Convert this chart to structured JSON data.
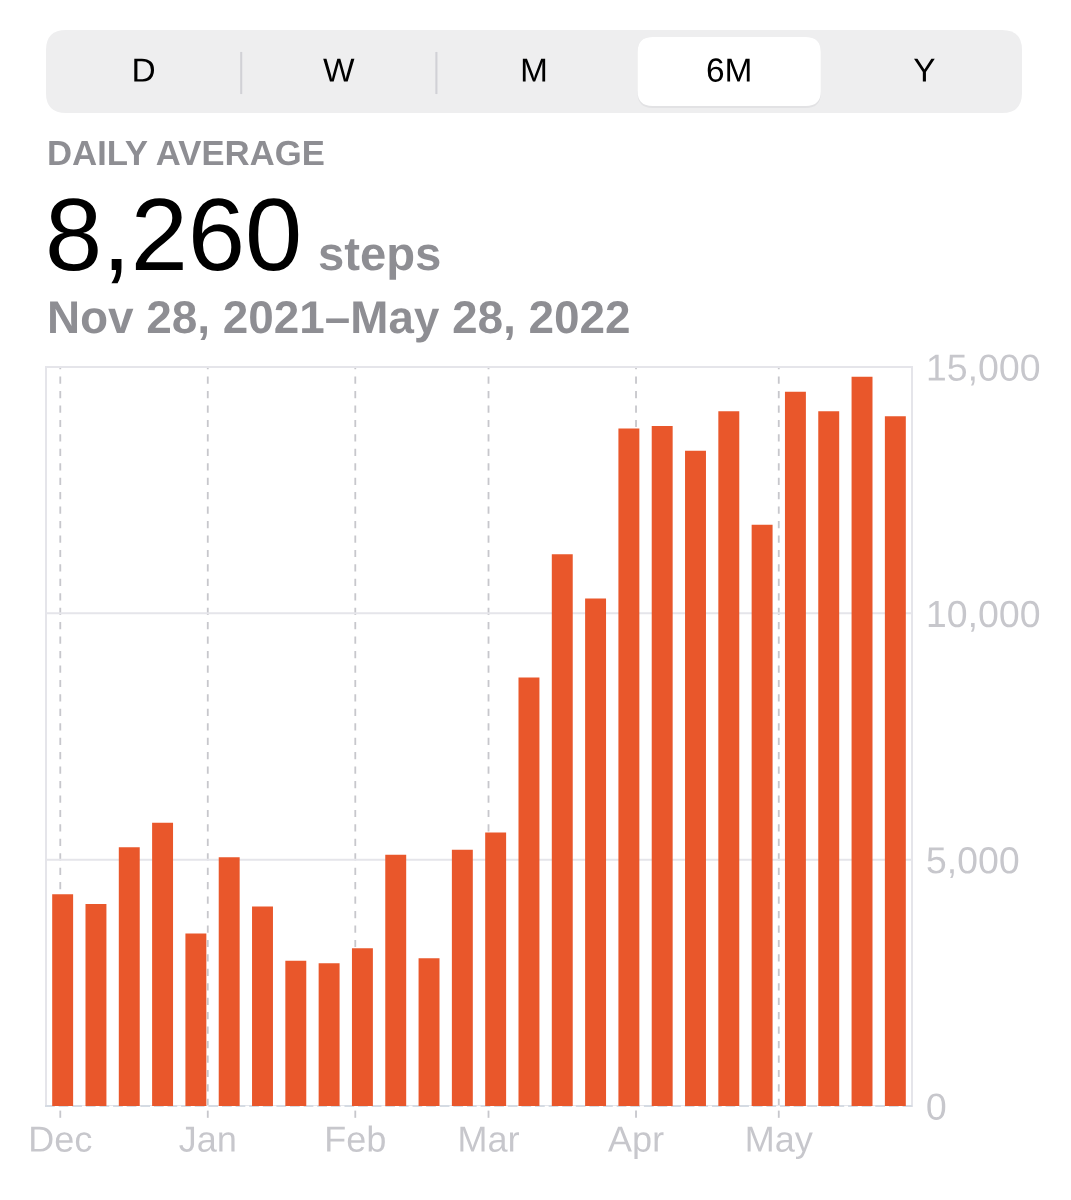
{
  "chart_data": {
    "type": "bar",
    "title": "DAILY AVERAGE",
    "subtitle": "Nov 28, 2021–May 28, 2022",
    "annotations": [
      "D",
      "W",
      "M",
      "6M",
      "Y",
      "8,260",
      "steps"
    ],
    "x": [
      "2021-12-01T12:00",
      "2021-12-08T12:00",
      "2021-12-15T12:00",
      "2021-12-22T12:00",
      "2021-12-29T12:00",
      "2022-01-05T12:00",
      "2022-01-12T12:00",
      "2022-01-19T12:00",
      "2022-01-26T12:00",
      "2022-02-02T12:00",
      "2022-02-09T12:00",
      "2022-02-16T12:00",
      "2022-02-23T12:00",
      "2022-03-02T12:00",
      "2022-03-09T12:00",
      "2022-03-16T12:00",
      "2022-03-23T12:00",
      "2022-03-30T12:00",
      "2022-04-06T12:00",
      "2022-04-13T12:00",
      "2022-04-20T12:00",
      "2022-04-27T12:00",
      "2022-05-04T12:00",
      "2022-05-11T12:00",
      "2022-05-18T12:00",
      "2022-05-25T12:00"
    ],
    "values": [
      4300,
      4100,
      5250,
      5750,
      3500,
      5050,
      4050,
      2950,
      2900,
      3200,
      5100,
      3000,
      5200,
      5550,
      8700,
      11200,
      10300,
      13750,
      13800,
      13300,
      14100,
      11800,
      14500,
      14100,
      14800,
      14000
    ],
    "color": "#e9572b",
    "xlim": [
      "2021-11-28",
      "2022-05-29"
    ],
    "xticks": [
      {
        "value": "2021-12-01",
        "label": "Dec"
      },
      {
        "value": "2022-01-01",
        "label": "Jan"
      },
      {
        "value": "2022-02-01",
        "label": "Feb"
      },
      {
        "value": "2022-03-01",
        "label": "Mar"
      },
      {
        "value": "2022-04-01",
        "label": "Apr"
      },
      {
        "value": "2022-05-01",
        "label": "May"
      }
    ],
    "ylim": [
      0,
      15000
    ],
    "yticks": [
      0,
      {
        "value": 5000,
        "label": "5,000"
      },
      {
        "value": 10000,
        "label": "10,000"
      },
      {
        "value": 15000,
        "label": "15,000"
      }
    ],
    "grid": true
  }
}
